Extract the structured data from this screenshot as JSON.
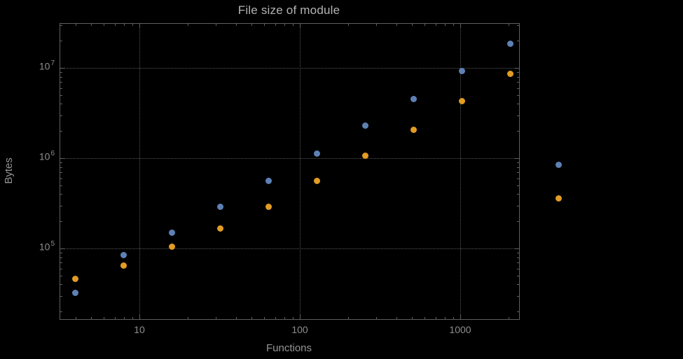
{
  "chart_data": {
    "type": "scatter",
    "title": "File size of module",
    "xlabel": "Functions",
    "ylabel": "Bytes",
    "x_scale": "log",
    "y_scale": "log",
    "grid": true,
    "legend": "none",
    "xlim": [
      3.3,
      2330
    ],
    "ylim": [
      16500,
      30700000
    ],
    "x_ticks": [
      10,
      100,
      1000
    ],
    "x_tick_labels": [
      "10",
      "100",
      "1000"
    ],
    "y_ticks": [
      100000,
      1000000,
      10000000
    ],
    "y_tick_labels": [
      {
        "base": "10",
        "exp": "5"
      },
      {
        "base": "10",
        "exp": "6"
      },
      {
        "base": "10",
        "exp": "7"
      }
    ],
    "series": [
      {
        "name": "series-1",
        "color": "#5e81b5",
        "points": [
          [
            4,
            32000
          ],
          [
            8,
            85000
          ],
          [
            16,
            150000
          ],
          [
            32,
            290000
          ],
          [
            64,
            565000
          ],
          [
            128,
            1130000
          ],
          [
            256,
            2300000
          ],
          [
            512,
            4500000
          ],
          [
            1024,
            9300000
          ],
          [
            2048,
            18500000
          ],
          [
            4096,
            850000
          ]
        ]
      },
      {
        "name": "series-2",
        "color": "#e19c24",
        "points": [
          [
            4,
            46000
          ],
          [
            8,
            65000
          ],
          [
            16,
            105000
          ],
          [
            32,
            165000
          ],
          [
            64,
            290000
          ],
          [
            128,
            560000
          ],
          [
            256,
            1070000
          ],
          [
            512,
            2050000
          ],
          [
            1024,
            4300000
          ],
          [
            2048,
            8600000
          ],
          [
            4096,
            360000
          ]
        ]
      }
    ]
  }
}
